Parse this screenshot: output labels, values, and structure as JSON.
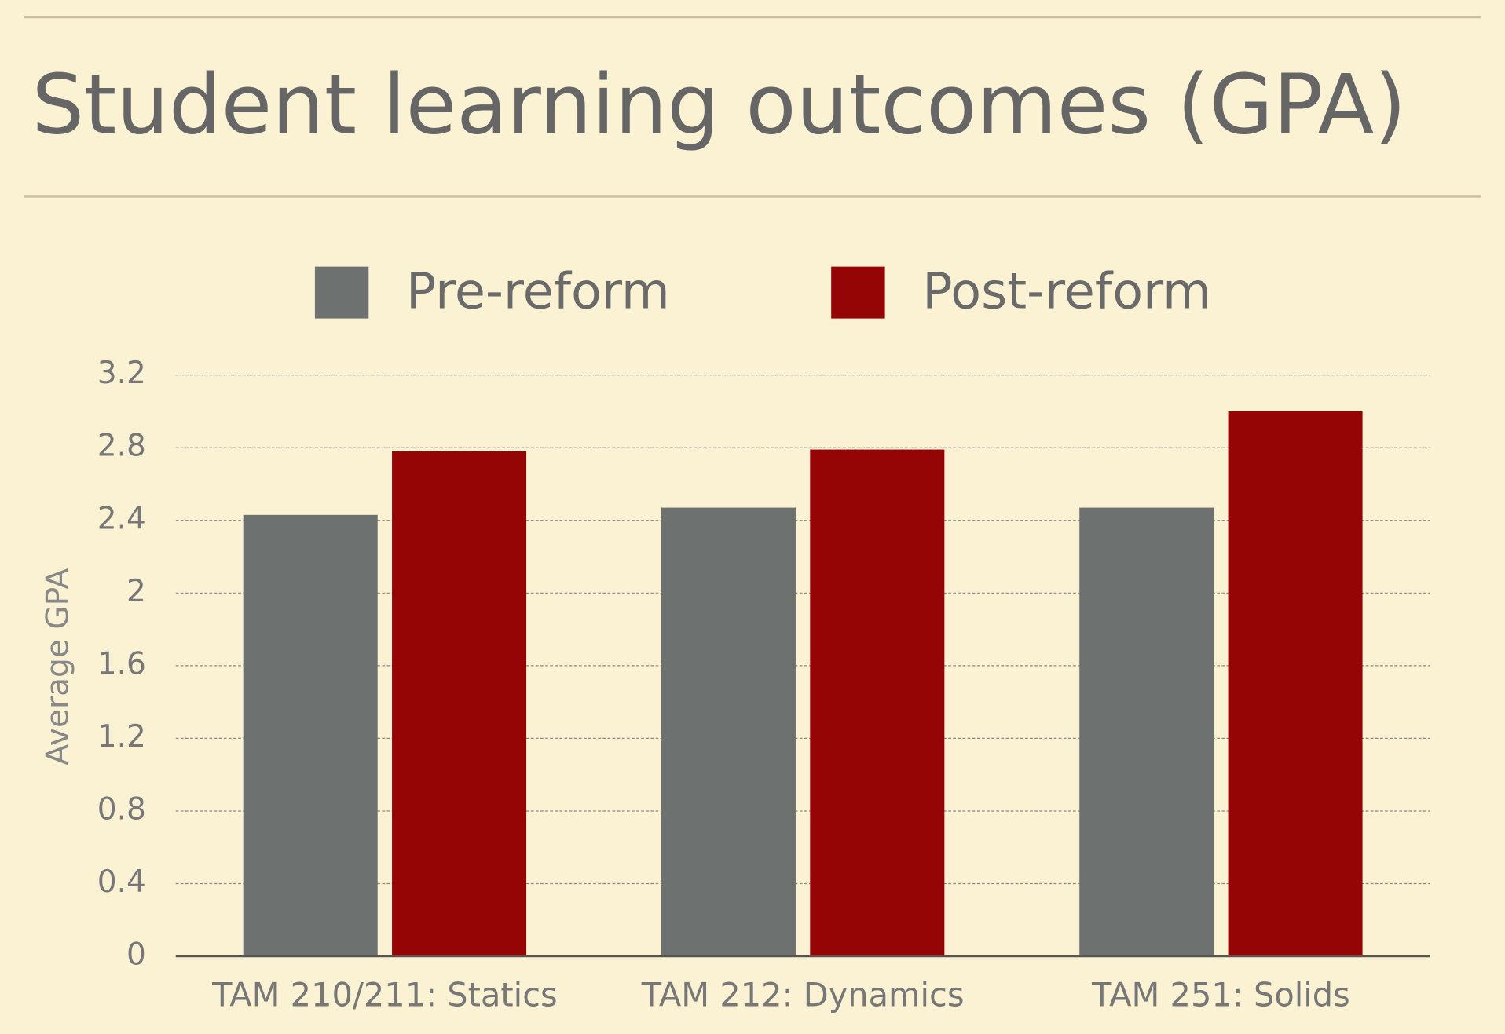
{
  "chart_data": {
    "type": "bar",
    "title": "Student learning outcomes (GPA)",
    "y_label": "Average GPA",
    "categories": [
      "TAM 210/211: Statics",
      "TAM 212: Dynamics",
      "TAM 251: Solids"
    ],
    "series": [
      {
        "name": "Pre-reform",
        "color": "#6d7270",
        "values": [
          2.43,
          2.47,
          2.47
        ]
      },
      {
        "name": "Post-reform",
        "color": "#960506",
        "values": [
          2.78,
          2.79,
          3.0
        ]
      }
    ],
    "ylim": [
      0,
      3.2
    ],
    "yticks": [
      0,
      0.4,
      0.8,
      1.2,
      1.6,
      2,
      2.4,
      2.8,
      3.2
    ],
    "grid": true,
    "legend": "top"
  }
}
